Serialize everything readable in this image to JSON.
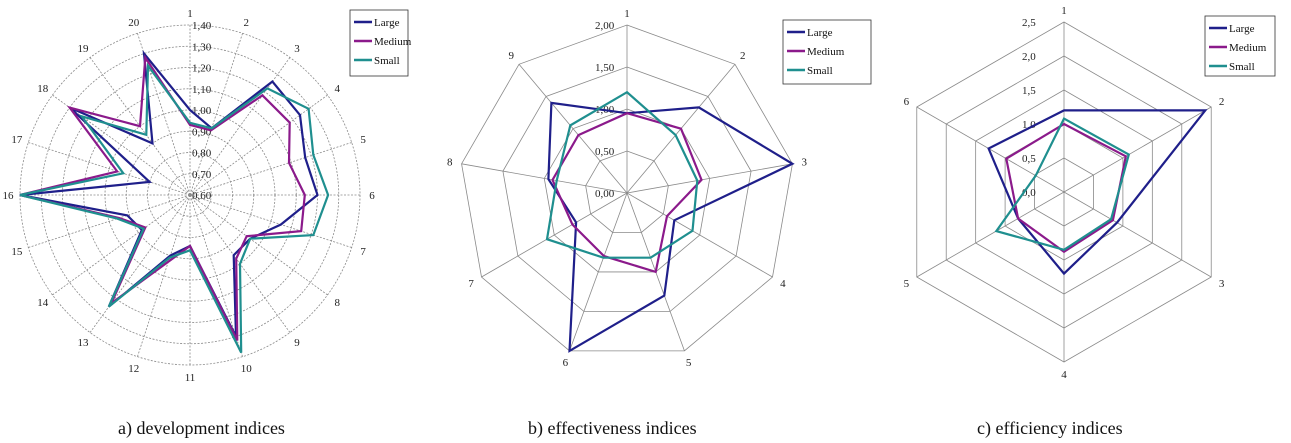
{
  "colors": {
    "Large": "#1f1f8a",
    "Medium": "#8b1a8b",
    "Small": "#1f8f8f",
    "grid": "#8a8a8a"
  },
  "chart_data": [
    {
      "type": "radar",
      "caption": "a) development indices",
      "axes": [
        "1",
        "2",
        "3",
        "4",
        "5",
        "6",
        "7",
        "8",
        "9",
        "10",
        "11",
        "12",
        "13",
        "14",
        "15",
        "16",
        "17",
        "18",
        "19",
        "20"
      ],
      "rlim": [
        0.6,
        1.4
      ],
      "ticks": [
        "0,60",
        "0,70",
        "0,80",
        "0,90",
        "1,00",
        "1,10",
        "1,20",
        "1,30",
        "1,40"
      ],
      "legend_position": "top-right",
      "series": [
        {
          "name": "Large",
          "values": [
            1.0,
            0.93,
            1.26,
            1.24,
            1.17,
            1.2,
            1.05,
            0.95,
            0.95,
            1.3,
            0.84,
            0.9,
            1.25,
            0.88,
            0.91,
            1.4,
            0.8,
            1.3,
            0.9,
            1.3
          ]
        },
        {
          "name": "Medium",
          "values": [
            0.93,
            0.92,
            1.18,
            1.18,
            1.09,
            1.14,
            1.15,
            0.93,
            0.97,
            1.32,
            0.84,
            0.93,
            1.23,
            0.86,
            0.95,
            1.4,
            0.96,
            1.3,
            1.0,
            1.28
          ]
        },
        {
          "name": "Small",
          "values": [
            0.94,
            0.93,
            1.22,
            1.29,
            1.21,
            1.25,
            1.21,
            0.95,
            1.0,
            1.38,
            0.86,
            0.91,
            1.25,
            0.87,
            0.96,
            1.4,
            0.93,
            1.23,
            0.95,
            1.24
          ]
        }
      ]
    },
    {
      "type": "radar",
      "caption": "b) effectiveness indices",
      "axes": [
        "1",
        "2",
        "3",
        "4",
        "5",
        "6",
        "7",
        "8",
        "9"
      ],
      "rlim": [
        0,
        2
      ],
      "ticks": [
        "0,00",
        "0,50",
        "1,00",
        "1,50",
        "2,00"
      ],
      "legend_position": "top-right",
      "series": [
        {
          "name": "Large",
          "values": [
            0.95,
            1.33,
            2.0,
            0.65,
            1.3,
            2.0,
            0.7,
            0.95,
            1.4
          ]
        },
        {
          "name": "Medium",
          "values": [
            0.95,
            1.0,
            0.9,
            0.55,
            1.0,
            0.8,
            0.75,
            0.9,
            0.9
          ]
        },
        {
          "name": "Small",
          "values": [
            1.2,
            0.9,
            0.85,
            0.9,
            0.82,
            0.82,
            1.1,
            0.85,
            1.05
          ]
        }
      ]
    },
    {
      "type": "radar",
      "caption": "c) efficiency indices",
      "axes": [
        "1",
        "2",
        "3",
        "4",
        "5",
        "6"
      ],
      "rlim": [
        0,
        2.5
      ],
      "ticks": [
        "0,0",
        "0,5",
        "1,0",
        "1,5",
        "2,0",
        "2,5"
      ],
      "legend_position": "top-right",
      "series": [
        {
          "name": "Large",
          "values": [
            1.2,
            2.4,
            0.9,
            1.2,
            0.78,
            1.28
          ]
        },
        {
          "name": "Medium",
          "values": [
            1.0,
            1.05,
            0.83,
            0.88,
            0.78,
            0.98
          ]
        },
        {
          "name": "Small",
          "values": [
            1.08,
            1.1,
            0.8,
            0.85,
            1.15,
            0.48
          ]
        }
      ]
    }
  ]
}
